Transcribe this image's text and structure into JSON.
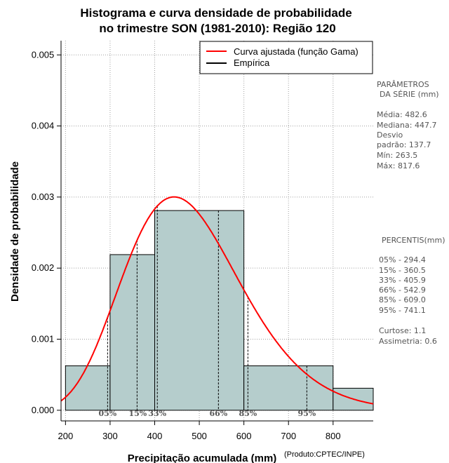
{
  "chart_data": {
    "type": "bar",
    "title_line1": "Histograma e curva densidade de probabilidade",
    "title_line2": "no trimestre SON (1981-2010): Região 120",
    "xlabel": "Precipitação acumulada (mm)",
    "ylabel": "Densidade de probabilidade",
    "credit": "(Produto:CPTEC/INPE)",
    "xlim": [
      190,
      890
    ],
    "ylim": [
      -0.00015,
      0.0052
    ],
    "x_ticks": [
      200,
      300,
      400,
      500,
      600,
      700,
      800
    ],
    "y_ticks": [
      "0.000",
      "0.001",
      "0.002",
      "0.003",
      "0.004",
      "0.005"
    ],
    "y_tick_values": [
      0,
      0.001,
      0.002,
      0.003,
      0.004,
      0.005
    ],
    "grid": true,
    "histogram": [
      {
        "x0": 200,
        "x1": 300,
        "density": 0.000625
      },
      {
        "x0": 300,
        "x1": 400,
        "density": 0.00219
      },
      {
        "x0": 400,
        "x1": 600,
        "density": 0.00281
      },
      {
        "x0": 600,
        "x1": 800,
        "density": 0.000625
      },
      {
        "x0": 800,
        "x1": 900,
        "density": 0.00031
      }
    ],
    "gamma_fit": {
      "shape": 12.3,
      "scale": 39.25,
      "name": "Curva ajustada (função Gama)"
    },
    "empirical_name": "Empírica",
    "legend_position": "top-right",
    "percentile_markers": [
      {
        "label": "05%",
        "value": 294.4
      },
      {
        "label": "15%",
        "value": 360.5
      },
      {
        "label": "33%",
        "value": 405.9
      },
      {
        "label": "66%",
        "value": 542.9
      },
      {
        "label": "85%",
        "value": 609.0
      },
      {
        "label": "95%",
        "value": 741.1
      }
    ],
    "colors": {
      "bar": "#b5cdcc",
      "curve": "#ff0000",
      "empirical": "#000000",
      "grid": "#a0a0a0"
    }
  },
  "params": {
    "title1": "PARÂMETROS",
    "title2": "DA SÉRIE (mm)",
    "media": "Média:  482.6",
    "mediana": "Mediana:  447.7",
    "desvio1": "Desvio",
    "desvio2": "padrão:  137.7",
    "min": "Mín:  263.5",
    "max": "Máx:  817.6"
  },
  "percentis": {
    "title": "PERCENTIS(mm)",
    "p05": "05% -   294.4",
    "p15": "15% -   360.5",
    "p33": "33% -   405.9",
    "p66": "66% -   542.9",
    "p85": "85% -   609.0",
    "p95": "95% -   741.1",
    "curtose": "Curtose:  1.1",
    "assimetria": "Assimetria:  0.6"
  }
}
